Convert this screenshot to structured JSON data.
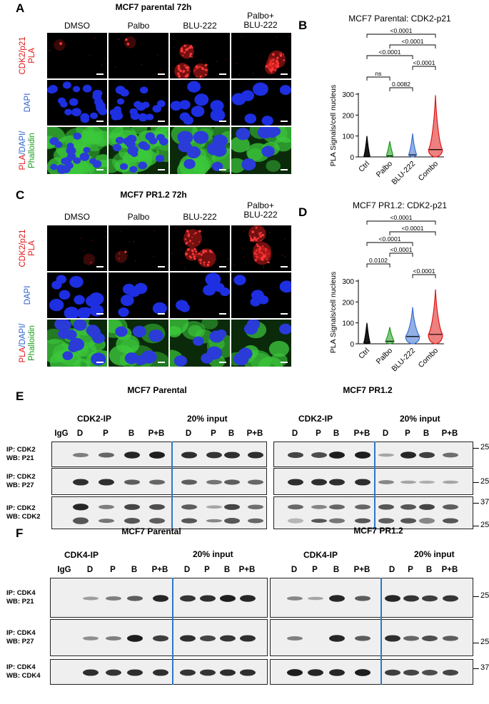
{
  "panel_a": {
    "label": "A",
    "title": "MCF7 parental 72h",
    "columns": [
      "DMSO",
      "Palbo",
      "BLU-222",
      "Palbo+ BLU-222"
    ],
    "rows": [
      {
        "label_parts": [
          {
            "text": "CDK2/p21",
            "color": "#e01818"
          },
          {
            "text": "PLA",
            "color": "#e01818"
          }
        ]
      },
      {
        "label_parts": [
          {
            "text": "DAPI",
            "color": "#2a5fd0"
          }
        ]
      },
      {
        "label_parts": [
          {
            "text": "PLA",
            "color": "#e01818"
          },
          {
            "text": "/DAPI/",
            "color": "#2a5fd0"
          },
          {
            "text": "Phalloidin",
            "color": "#1a9a1a"
          }
        ]
      }
    ]
  },
  "panel_b": {
    "label": "B",
    "chart_data": {
      "type": "violin",
      "title": "MCF7 Parental: CDK2-p21",
      "ylabel": "PLA Signals/cell nucleus",
      "categories": [
        "Ctrl",
        "Palbo",
        "BLU-222",
        "Combo"
      ],
      "colors": [
        "#000000",
        "#1a9a1a",
        "#3a70d0",
        "#e01818"
      ],
      "ylim": [
        0,
        300
      ],
      "yticks": [
        0,
        100,
        200,
        300
      ],
      "medians": [
        2,
        5,
        10,
        35
      ],
      "max_values": [
        100,
        75,
        112,
        295
      ],
      "comparisons": [
        {
          "from": 0,
          "to": 3,
          "p": "<0.0001"
        },
        {
          "from": 1,
          "to": 3,
          "p": "<0.0001"
        },
        {
          "from": 0,
          "to": 2,
          "p": "<0.0001"
        },
        {
          "from": 2,
          "to": 3,
          "p": "<0.0001"
        },
        {
          "from": 0,
          "to": 1,
          "p": "ns"
        },
        {
          "from": 1,
          "to": 2,
          "p": "0.0082"
        }
      ]
    }
  },
  "panel_c": {
    "label": "C",
    "title": "MCF7 PR1.2 72h",
    "columns": [
      "DMSO",
      "Palbo",
      "BLU-222",
      "Palbo+ BLU-222"
    ],
    "rows": [
      {
        "label_parts": [
          {
            "text": "CDK2/p21",
            "color": "#e01818"
          },
          {
            "text": "PLA",
            "color": "#e01818"
          }
        ]
      },
      {
        "label_parts": [
          {
            "text": "DAPI",
            "color": "#2a5fd0"
          }
        ]
      },
      {
        "label_parts": [
          {
            "text": "PLA",
            "color": "#e01818"
          },
          {
            "text": "/DAPI/",
            "color": "#2a5fd0"
          },
          {
            "text": "Phalloidin",
            "color": "#1a9a1a"
          }
        ]
      }
    ]
  },
  "panel_d": {
    "label": "D",
    "chart_data": {
      "type": "violin",
      "title": "MCF7 PR1.2: CDK2-p21",
      "ylabel": "PLA Signals/cell nucleus",
      "categories": [
        "Ctrl",
        "Palbo",
        "BLU-222",
        "Combo"
      ],
      "colors": [
        "#000000",
        "#1a9a1a",
        "#3a70d0",
        "#e01818"
      ],
      "ylim": [
        0,
        300
      ],
      "yticks": [
        0,
        100,
        200,
        300
      ],
      "medians": [
        3,
        12,
        35,
        45
      ],
      "max_values": [
        100,
        80,
        175,
        260
      ],
      "comparisons": [
        {
          "from": 0,
          "to": 3,
          "p": "<0.0001"
        },
        {
          "from": 1,
          "to": 3,
          "p": "<0.0001"
        },
        {
          "from": 0,
          "to": 2,
          "p": "<0.0001"
        },
        {
          "from": 1,
          "to": 2,
          "p": "<0.0001"
        },
        {
          "from": 0,
          "to": 1,
          "p": "0.0102"
        },
        {
          "from": 2,
          "to": 3,
          "p": "<0.0001"
        }
      ]
    }
  },
  "panel_e": {
    "label": "E",
    "left_title": "MCF7 Parental",
    "right_title": "MCF7 PR1.2",
    "ip_title": "CDK2-IP",
    "input_title": "20% input",
    "lanes_left": [
      "IgG",
      "D",
      "P",
      "B",
      "P+B",
      "D",
      "P",
      "B",
      "P+B"
    ],
    "lanes_right": [
      "D",
      "P",
      "B",
      "P+B",
      "D",
      "P",
      "B",
      "P+B"
    ],
    "rows": [
      {
        "label": "IP: CDK2\nWB: P21"
      },
      {
        "label": "IP: CDK2\nWB: P27"
      },
      {
        "label": "IP: CDK2\nWB: CDK2"
      }
    ],
    "mw": [
      "25",
      "25",
      "37",
      "25"
    ]
  },
  "panel_f": {
    "label": "F",
    "left_title": "MCF7 Parental",
    "right_title": "MCF7 PR1.2",
    "ip_title": "CDK4-IP",
    "input_title": "20% input",
    "lanes_left": [
      "IgG",
      "D",
      "P",
      "B",
      "P+B",
      "D",
      "P",
      "B",
      "P+B"
    ],
    "lanes_right": [
      "D",
      "P",
      "B",
      "P+B",
      "D",
      "P",
      "B",
      "P+B"
    ],
    "rows": [
      {
        "label": "IP: CDK4\nWB: P21"
      },
      {
        "label": "IP: CDK4\nWB: P27"
      },
      {
        "label": "IP: CDK4\nWB: CDK4"
      }
    ],
    "mw": [
      "25",
      "25",
      "37"
    ]
  }
}
